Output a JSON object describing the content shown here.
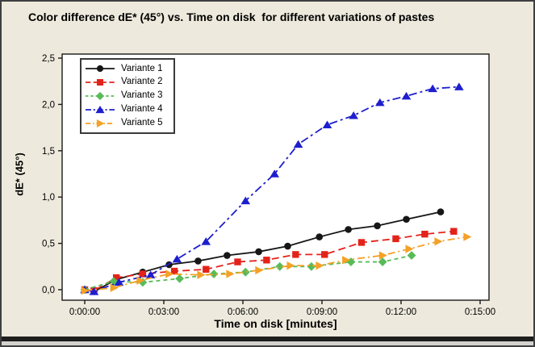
{
  "figure": {
    "background_color": "#EDE9DC",
    "plot_background_color": "#FFFFFF",
    "frame_border_color": "#3F3F41"
  },
  "chart_data": {
    "type": "line",
    "title": "Color difference dE* (45°) vs. Time on disk  for different variations of pastes",
    "xlabel": "Time on disk [minutes]",
    "ylabel": "dE* (45°)",
    "grid": false,
    "legend_position": "top-left",
    "xlim": [
      -0.86,
      15.34
    ],
    "ylim": [
      -0.11,
      2.54
    ],
    "x_ticks": [
      {
        "value": 0,
        "label": "0:00:00"
      },
      {
        "value": 3,
        "label": "0:03:00"
      },
      {
        "value": 6,
        "label": "0:06:00"
      },
      {
        "value": 9,
        "label": "0:09:00"
      },
      {
        "value": 12,
        "label": "0:12:00"
      },
      {
        "value": 15,
        "label": "0:15:00"
      }
    ],
    "y_ticks": [
      {
        "value": 0.0,
        "label": "0,0"
      },
      {
        "value": 0.5,
        "label": "0,5"
      },
      {
        "value": 1.0,
        "label": "1,0"
      },
      {
        "value": 1.5,
        "label": "1,5"
      },
      {
        "value": 2.0,
        "label": "2,0"
      },
      {
        "value": 2.5,
        "label": "2,5"
      }
    ],
    "series": [
      {
        "name": "Variante 1",
        "color": "#161616",
        "marker": "circle",
        "dash": "solid",
        "points": [
          [
            0,
            0.0
          ],
          [
            0.35,
            -0.02
          ],
          [
            1.2,
            0.11
          ],
          [
            2.2,
            0.19
          ],
          [
            3.2,
            0.27
          ],
          [
            4.3,
            0.31
          ],
          [
            5.4,
            0.37
          ],
          [
            6.6,
            0.41
          ],
          [
            7.7,
            0.47
          ],
          [
            8.9,
            0.57
          ],
          [
            10.0,
            0.65
          ],
          [
            11.1,
            0.69
          ],
          [
            12.2,
            0.76
          ],
          [
            13.5,
            0.84
          ]
        ]
      },
      {
        "name": "Variante 2",
        "color": "#E3231A",
        "marker": "square",
        "dash": "9 5",
        "points": [
          [
            0,
            0.0
          ],
          [
            0.35,
            -0.01
          ],
          [
            1.2,
            0.13
          ],
          [
            2.2,
            0.17
          ],
          [
            3.4,
            0.2
          ],
          [
            4.6,
            0.22
          ],
          [
            5.8,
            0.3
          ],
          [
            6.9,
            0.32
          ],
          [
            8.0,
            0.38
          ],
          [
            9.1,
            0.38
          ],
          [
            10.5,
            0.51
          ],
          [
            11.8,
            0.55
          ],
          [
            12.9,
            0.6
          ],
          [
            14.0,
            0.63
          ]
        ]
      },
      {
        "name": "Variante 3",
        "color": "#58BB58",
        "marker": "diamond",
        "dash": "5 4",
        "points": [
          [
            0,
            0.0
          ],
          [
            1.1,
            0.09
          ],
          [
            2.2,
            0.08
          ],
          [
            3.6,
            0.12
          ],
          [
            4.9,
            0.17
          ],
          [
            6.1,
            0.19
          ],
          [
            7.4,
            0.25
          ],
          [
            8.6,
            0.25
          ],
          [
            10.1,
            0.3
          ],
          [
            11.3,
            0.3
          ],
          [
            12.4,
            0.37
          ]
        ]
      },
      {
        "name": "Variante 4",
        "color": "#1E1ECF",
        "marker": "triangle-up",
        "dash": "10 4 3 4",
        "points": [
          [
            0,
            0.0
          ],
          [
            0.35,
            -0.02
          ],
          [
            1.3,
            0.08
          ],
          [
            2.5,
            0.16
          ],
          [
            3.5,
            0.33
          ],
          [
            4.6,
            0.52
          ],
          [
            6.1,
            0.96
          ],
          [
            7.2,
            1.25
          ],
          [
            8.1,
            1.57
          ],
          [
            9.2,
            1.78
          ],
          [
            10.2,
            1.88
          ],
          [
            11.2,
            2.02
          ],
          [
            12.2,
            2.09
          ],
          [
            13.2,
            2.17
          ],
          [
            14.2,
            2.19
          ]
        ]
      },
      {
        "name": "Variante 5",
        "color": "#F4A127",
        "marker": "triangle-right",
        "dash": "9 4 2 4",
        "points": [
          [
            0,
            -0.01
          ],
          [
            1.1,
            0.02
          ],
          [
            2.1,
            0.1
          ],
          [
            3.2,
            0.17
          ],
          [
            4.4,
            0.16
          ],
          [
            5.5,
            0.17
          ],
          [
            6.6,
            0.21
          ],
          [
            7.8,
            0.26
          ],
          [
            8.9,
            0.26
          ],
          [
            9.9,
            0.32
          ],
          [
            11.3,
            0.37
          ],
          [
            12.3,
            0.44
          ],
          [
            13.4,
            0.52
          ],
          [
            14.5,
            0.57
          ]
        ]
      }
    ]
  }
}
